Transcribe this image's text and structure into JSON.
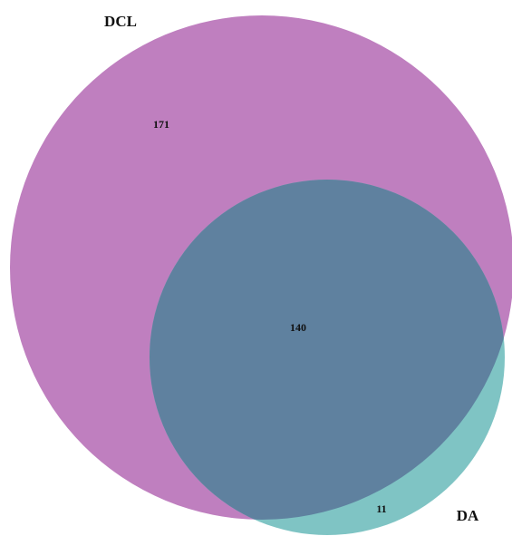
{
  "set_labels": [
    "DCL",
    "DA"
  ],
  "region_counts": [
    171,
    140,
    11
  ]
}
